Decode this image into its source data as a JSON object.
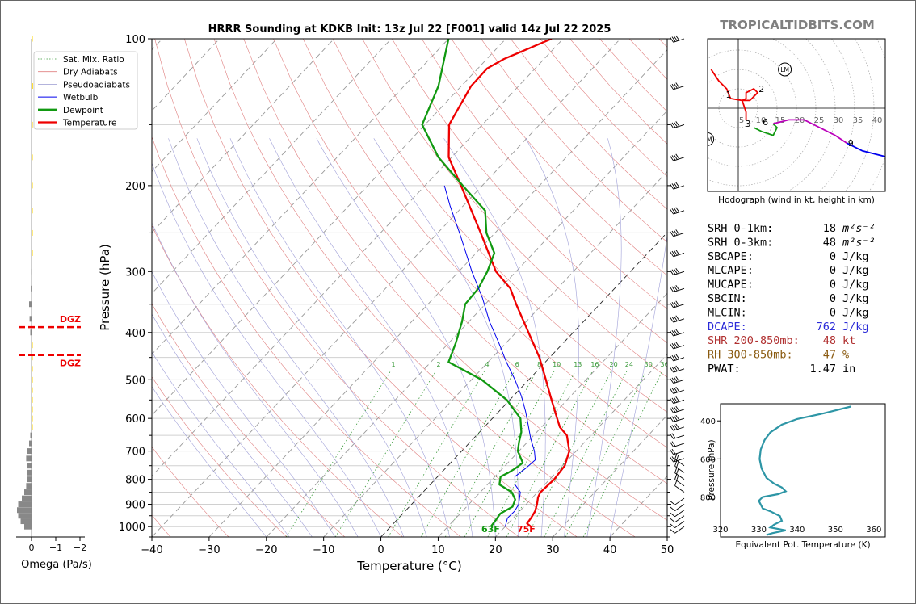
{
  "title": "HRRR Sounding at KDKB Init: 13z Jul 22 [F001] valid 14z Jul 22 2025",
  "watermark": "TROPICALTIDBITS.COM",
  "chart_data": [
    {
      "type": "line",
      "subtype": "skew-t",
      "xlabel": "Temperature (°C)",
      "ylabel": "Pressure (hPa)",
      "xlim": [
        -40,
        50
      ],
      "ylim": [
        1050,
        100
      ],
      "y_scale": "log",
      "x_ticks": [
        -40,
        -30,
        -20,
        -10,
        0,
        10,
        20,
        30,
        40,
        50
      ],
      "y_ticks": [
        100,
        200,
        300,
        400,
        500,
        600,
        700,
        800,
        900,
        1000
      ],
      "mixing_ratio_labels": [
        "1",
        "2",
        "4",
        "6",
        "8",
        "10",
        "13",
        "16",
        "20",
        "24",
        "30",
        "36"
      ],
      "legend": [
        {
          "label": "Sat. Mix. Ratio",
          "color": "#3a9a3a",
          "style": "dotted"
        },
        {
          "label": "Dry Adiabats",
          "color": "#e08080",
          "style": "solid"
        },
        {
          "label": "Pseudoadiabats",
          "color": "#9a9ad0",
          "style": "solid"
        },
        {
          "label": "Wetbulb",
          "color": "#0000ee",
          "style": "solid"
        },
        {
          "label": "Dewpoint",
          "color": "#119911",
          "style": "solid"
        },
        {
          "label": "Temperature",
          "color": "#ee0000",
          "style": "solid"
        }
      ],
      "surface_labels": {
        "dewpoint": "63F",
        "temperature": "75F"
      },
      "series": [
        {
          "name": "Temperature",
          "color": "#ee0000",
          "points": [
            [
              1000,
              24.5
            ],
            [
              985,
              23.3
            ],
            [
              960,
              23.1
            ],
            [
              930,
              22.7
            ],
            [
              900,
              21.9
            ],
            [
              870,
              20.9
            ],
            [
              850,
              20.5
            ],
            [
              800,
              20.8
            ],
            [
              750,
              20.4
            ],
            [
              700,
              18.8
            ],
            [
              650,
              15.8
            ],
            [
              625,
              13.2
            ],
            [
              600,
              11.3
            ],
            [
              550,
              7.3
            ],
            [
              500,
              3.0
            ],
            [
              450,
              -1.8
            ],
            [
              400,
              -7.8
            ],
            [
              350,
              -14.6
            ],
            [
              325,
              -18.2
            ],
            [
              300,
              -23.5
            ],
            [
              250,
              -32.5
            ],
            [
              200,
              -43.7
            ],
            [
              175,
              -50.5
            ],
            [
              150,
              -55.8
            ],
            [
              125,
              -58.3
            ],
            [
              115,
              -58.4
            ],
            [
              110,
              -57.0
            ],
            [
              100,
              -52.0
            ]
          ]
        },
        {
          "name": "Dewpoint",
          "color": "#119911",
          "points": [
            [
              1000,
              17.5
            ],
            [
              970,
              17.3
            ],
            [
              940,
              17.0
            ],
            [
              910,
              18.0
            ],
            [
              880,
              17.3
            ],
            [
              850,
              15.5
            ],
            [
              820,
              12.1
            ],
            [
              790,
              11.0
            ],
            [
              775,
              11.7
            ],
            [
              760,
              12.2
            ],
            [
              740,
              12.6
            ],
            [
              700,
              9.8
            ],
            [
              670,
              8.5
            ],
            [
              640,
              7.3
            ],
            [
              600,
              4.9
            ],
            [
              550,
              -0.5
            ],
            [
              500,
              -8.2
            ],
            [
              460,
              -16.9
            ],
            [
              420,
              -18.8
            ],
            [
              380,
              -21.2
            ],
            [
              350,
              -23.5
            ],
            [
              325,
              -23.8
            ],
            [
              300,
              -25.0
            ],
            [
              275,
              -26.8
            ],
            [
              250,
              -31.5
            ],
            [
              225,
              -35.4
            ],
            [
              200,
              -43.4
            ],
            [
              175,
              -52.3
            ],
            [
              150,
              -60.5
            ],
            [
              125,
              -64.0
            ],
            [
              100,
              -70.0
            ]
          ]
        },
        {
          "name": "Wetbulb",
          "color": "#0000ee",
          "points": [
            [
              1000,
              20.0
            ],
            [
              960,
              19.0
            ],
            [
              930,
              19.1
            ],
            [
              900,
              18.7
            ],
            [
              850,
              17.0
            ],
            [
              820,
              14.8
            ],
            [
              790,
              13.5
            ],
            [
              760,
              14.0
            ],
            [
              730,
              14.3
            ],
            [
              700,
              12.7
            ],
            [
              660,
              10.0
            ],
            [
              620,
              7.4
            ],
            [
              580,
              4.6
            ],
            [
              540,
              1.4
            ],
            [
              500,
              -2.4
            ],
            [
              460,
              -6.8
            ],
            [
              420,
              -11.3
            ],
            [
              380,
              -16.4
            ],
            [
              340,
              -21.5
            ],
            [
              300,
              -27.7
            ],
            [
              270,
              -32.6
            ],
            [
              250,
              -36.2
            ],
            [
              220,
              -42.3
            ],
            [
              200,
              -46.6
            ]
          ]
        }
      ]
    },
    {
      "type": "bar",
      "subtype": "omega-profile",
      "xlabel": "Omega (Pa/s)",
      "x_ticks": [
        "0",
        "−1",
        "−2"
      ],
      "xlim": [
        0.3,
        -2.3
      ],
      "dgz_label": "DGZ",
      "dgz_levels": [
        390,
        445
      ],
      "points": [
        [
          1000,
          0.3
        ],
        [
          975,
          0.45
        ],
        [
          950,
          0.55
        ],
        [
          925,
          0.6
        ],
        [
          900,
          0.55
        ],
        [
          875,
          0.4
        ],
        [
          850,
          0.3
        ],
        [
          825,
          0.22
        ],
        [
          800,
          0.2
        ],
        [
          775,
          0.18
        ],
        [
          750,
          0.2
        ],
        [
          725,
          0.22
        ],
        [
          700,
          0.18
        ],
        [
          675,
          0.1
        ],
        [
          650,
          0.05
        ],
        [
          625,
          -0.02
        ],
        [
          600,
          -0.03
        ],
        [
          575,
          -0.04
        ],
        [
          550,
          -0.04
        ],
        [
          525,
          -0.05
        ],
        [
          500,
          -0.05
        ],
        [
          475,
          -0.05
        ],
        [
          450,
          -0.04
        ],
        [
          425,
          -0.03
        ],
        [
          400,
          0.05
        ],
        [
          375,
          0.08
        ],
        [
          350,
          0.1
        ],
        [
          325,
          0.03
        ],
        [
          300,
          0.01
        ],
        [
          275,
          0.0
        ],
        [
          250,
          -0.02
        ],
        [
          225,
          -0.03
        ],
        [
          200,
          -0.03
        ],
        [
          175,
          -0.04
        ],
        [
          150,
          -0.05
        ],
        [
          125,
          -0.06
        ],
        [
          100,
          -0.05
        ]
      ]
    },
    {
      "type": "line",
      "subtype": "hodograph",
      "caption": "Hodograph (wind in kt, height in km)",
      "ring_labels": [
        "5",
        "10",
        "15",
        "20",
        "25",
        "30",
        "35",
        "40"
      ],
      "height_labels": [
        {
          "label": "1",
          "u": -2.5,
          "v": 3.5
        },
        {
          "label": "2",
          "u": 6,
          "v": 5
        },
        {
          "label": "3",
          "u": 2.5,
          "v": -4
        },
        {
          "label": "6",
          "u": 7,
          "v": -3.5
        },
        {
          "label": "9",
          "u": 29,
          "v": -9
        }
      ],
      "markers": [
        {
          "label": "LM",
          "u": 12,
          "v": 10
        },
        {
          "label": "RM",
          "u": -8,
          "v": -8
        }
      ],
      "segments": [
        {
          "color": "#ee0000",
          "points": [
            [
              -7,
              10
            ],
            [
              -5,
              7
            ],
            [
              -3,
              5
            ],
            [
              -2,
              2.5
            ],
            [
              1,
              2
            ],
            [
              2,
              2.5
            ],
            [
              2,
              4
            ],
            [
              4,
              5
            ],
            [
              5,
              4
            ],
            [
              3,
              2
            ],
            [
              1,
              2
            ],
            [
              2,
              -1
            ],
            [
              2,
              -3
            ]
          ]
        },
        {
          "color": "#119911",
          "points": [
            [
              4,
              -5
            ],
            [
              6,
              -6
            ],
            [
              9,
              -7
            ],
            [
              10,
              -5
            ],
            [
              9,
              -4
            ]
          ]
        },
        {
          "color": "#bb00bb",
          "points": [
            [
              9,
              -4
            ],
            [
              13,
              -3
            ],
            [
              17,
              -3
            ],
            [
              21,
              -5
            ],
            [
              25,
              -7
            ],
            [
              28,
              -9
            ]
          ]
        },
        {
          "color": "#0000ee",
          "points": [
            [
              28,
              -9
            ],
            [
              32,
              -11
            ],
            [
              36,
              -12
            ],
            [
              40,
              -13
            ],
            [
              43,
              -12
            ]
          ]
        }
      ]
    },
    {
      "type": "line",
      "subtype": "theta-e-profile",
      "xlabel": "Equivalent Pot. Temperature (K)",
      "ylabel": "Pressure (hPa)",
      "xlim": [
        320,
        363
      ],
      "x_ticks": [
        320,
        330,
        340,
        350,
        360
      ],
      "y_ticks": [
        400,
        600,
        800
      ],
      "ylim": [
        1010,
        310
      ],
      "color": "#2e96a6",
      "points": [
        [
          1000,
          332
        ],
        [
          990,
          333.5
        ],
        [
          975,
          337
        ],
        [
          960,
          333
        ],
        [
          945,
          334
        ],
        [
          925,
          336
        ],
        [
          900,
          335.5
        ],
        [
          875,
          333
        ],
        [
          860,
          331
        ],
        [
          840,
          330.5
        ],
        [
          820,
          330
        ],
        [
          800,
          331
        ],
        [
          785,
          335
        ],
        [
          770,
          337
        ],
        [
          750,
          336
        ],
        [
          730,
          334
        ],
        [
          700,
          332
        ],
        [
          650,
          330.7
        ],
        [
          600,
          330.2
        ],
        [
          550,
          330.5
        ],
        [
          500,
          331.5
        ],
        [
          460,
          333
        ],
        [
          420,
          336
        ],
        [
          390,
          340
        ],
        [
          360,
          347
        ],
        [
          325,
          354
        ]
      ]
    }
  ],
  "indices": [
    {
      "label": "SRH 0-1km:",
      "value": "18",
      "unit": "m²s⁻²",
      "color": "#000000"
    },
    {
      "label": "SRH 0-3km:",
      "value": "48",
      "unit": "m²s⁻²",
      "color": "#000000"
    },
    {
      "label": "SBCAPE:",
      "value": "0",
      "unit": "J/kg",
      "color": "#000000"
    },
    {
      "label": "MLCAPE:",
      "value": "0",
      "unit": "J/kg",
      "color": "#000000"
    },
    {
      "label": "MUCAPE:",
      "value": "0",
      "unit": "J/kg",
      "color": "#000000"
    },
    {
      "label": "SBCIN:",
      "value": "0",
      "unit": "J/kg",
      "color": "#000000"
    },
    {
      "label": "MLCIN:",
      "value": "0",
      "unit": "J/kg",
      "color": "#000000"
    },
    {
      "label": "DCAPE:",
      "value": "762",
      "unit": "J/kg",
      "color": "#2a2ad8"
    },
    {
      "label": "SHR 200-850mb:",
      "value": "48",
      "unit": "kt",
      "color": "#b03030"
    },
    {
      "label": "RH 300-850mb:",
      "value": "47",
      "unit": "%",
      "color": "#8a5a10"
    },
    {
      "label": "PWAT:",
      "value": "1.47",
      "unit": "in",
      "color": "#000000"
    }
  ]
}
